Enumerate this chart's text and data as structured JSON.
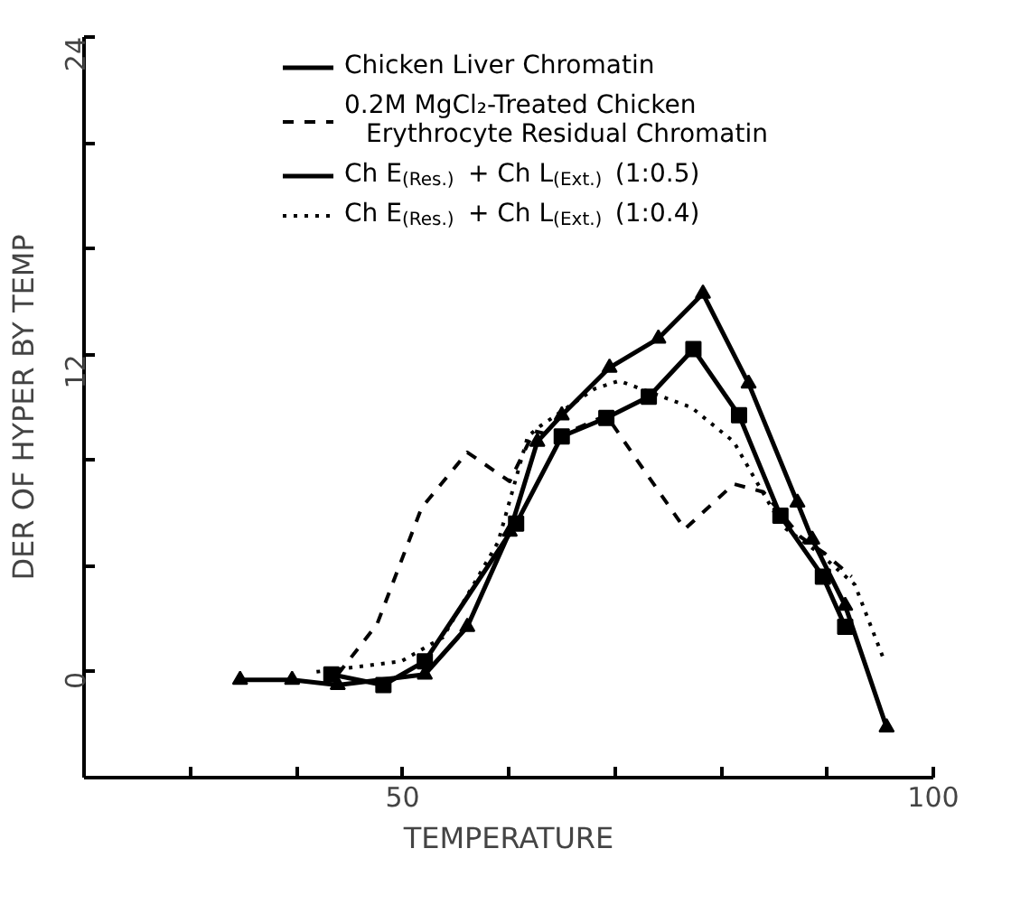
{
  "chart_data": {
    "type": "line",
    "xlabel": "TEMPERATURE",
    "ylabel": "DER OF HYPER BY TEMP",
    "xlim": [
      20,
      100
    ],
    "ylim": [
      -4,
      24
    ],
    "xticks": [
      {
        "value": 30,
        "label": null
      },
      {
        "value": 40,
        "label": null
      },
      50,
      {
        "value": 60,
        "label": null
      },
      {
        "value": 70,
        "label": null
      },
      {
        "value": 80,
        "label": null
      },
      {
        "value": 90,
        "label": null
      },
      100
    ],
    "yticks": [
      {
        "value": -4,
        "label": null
      },
      0,
      {
        "value": 4,
        "label": null
      },
      {
        "value": 8,
        "label": null
      },
      12,
      {
        "value": 16,
        "label": null
      },
      {
        "value": 20,
        "label": null
      },
      24
    ],
    "grid": false,
    "legend": "top",
    "series": [
      {
        "name": "Chicken Liver Chromatin",
        "color": "#000000",
        "marker": "triangle",
        "line_style": "solid",
        "x": [
          34.7,
          39.6,
          43.9,
          52.1,
          56.1,
          60.1,
          62.7,
          65,
          69.5,
          74.1,
          78.3,
          82.6,
          87.2,
          88.6,
          91.7,
          95.6
        ],
        "values": [
          -0.3,
          -0.3,
          -0.5,
          -0.1,
          1.7,
          5.3,
          8.7,
          9.7,
          11.5,
          12.6,
          14.3,
          10.9,
          6.4,
          5.0,
          2.5,
          -2.1
        ]
      },
      {
        "name": "0.2M MgCl₂-Treated Chicken\nErythrocyte Residual Chromatin",
        "color": "#000000",
        "marker": "none",
        "line_style": "dashed",
        "x": [
          43.9,
          47.6,
          51.8,
          56.1,
          60.1,
          62.4,
          64.7,
          69.2,
          72.1,
          76.6,
          81.2,
          84.0,
          87.5,
          89.7,
          92.3
        ],
        "values": [
          -0.1,
          1.8,
          6.2,
          8.3,
          7.2,
          9.1,
          8.9,
          9.7,
          8.0,
          5.4,
          7.1,
          6.8,
          5.1,
          4.5,
          3.6
        ]
      },
      {
        "name": "Ch E$_{(Res.)}$ + Ch L$_{(Ext.)}$ (1:0.5)",
        "color": "#000000",
        "marker": "square",
        "line_style": "solid",
        "x": [
          43.3,
          48.2,
          52.1,
          60.7,
          65,
          69.2,
          73.2,
          77.4,
          81.7,
          85.6,
          89.6,
          91.7
        ],
        "values": [
          -0.1,
          -0.5,
          0.4,
          5.6,
          8.9,
          9.6,
          10.4,
          12.2,
          9.7,
          5.9,
          3.6,
          1.7
        ]
      },
      {
        "name": "Ch E$_{(Res.)}$ + Ch L$_{(Ext.)}$ (1:0.4)",
        "color": "#000000",
        "marker": "none",
        "line_style": "dotted",
        "x": [
          41.9,
          49.9,
          53.8,
          59.0,
          61.8,
          63,
          68.1,
          70.4,
          77.2,
          81.2,
          82.9,
          85.8,
          89.2,
          92.6,
          95.4
        ],
        "values": [
          0,
          0.4,
          1.3,
          4.9,
          8.9,
          9.3,
          10.7,
          11.0,
          10.0,
          8.7,
          7.5,
          5.5,
          4.5,
          3.3,
          0.4
        ]
      }
    ]
  }
}
